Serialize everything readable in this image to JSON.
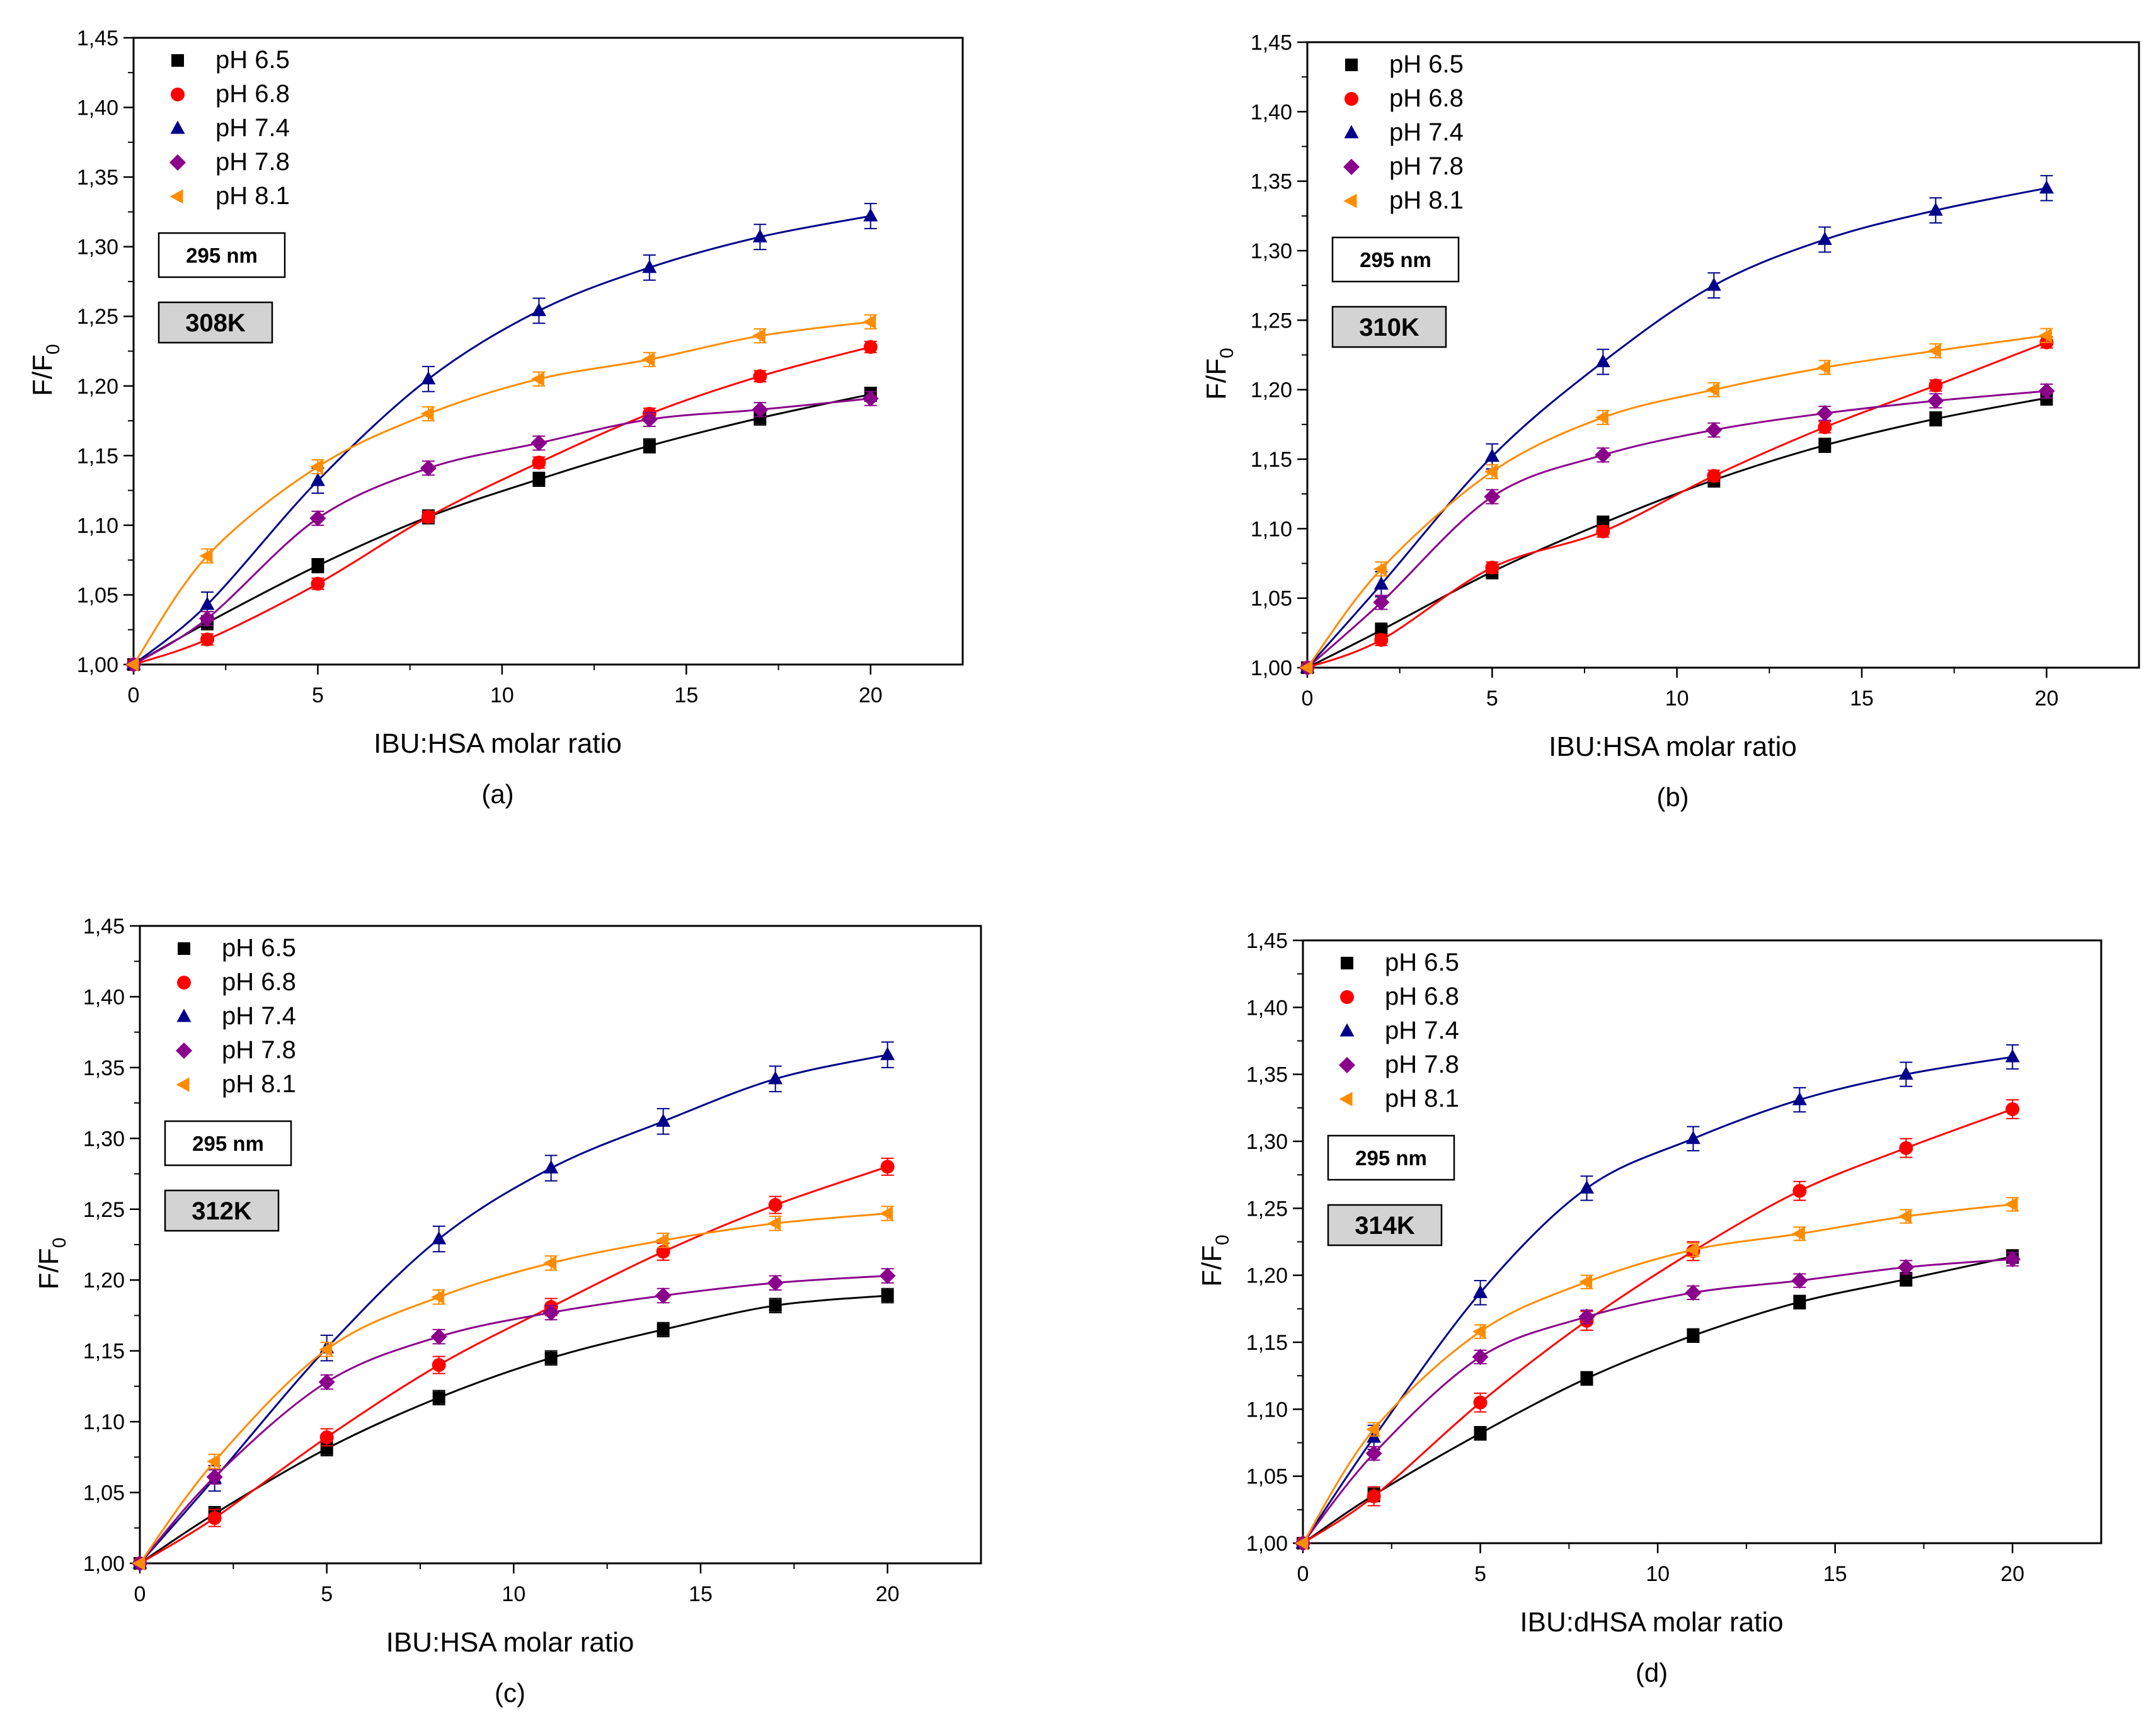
{
  "chart_data": [
    {
      "type": "scatter",
      "panel_label": "(a)",
      "wavelength_label": "295 nm",
      "temperature_label": "308K",
      "xlabel": "IBU:HSA molar ratio",
      "ylabel": "F/F",
      "ylabel_sub": "0",
      "xlim": [
        0,
        22.5
      ],
      "ylim": [
        1.0,
        1.45
      ],
      "x_ticks": [
        "0",
        "5",
        "10",
        "15",
        "20"
      ],
      "y_ticks": [
        "1,00",
        "1,05",
        "1,10",
        "1,15",
        "1,20",
        "1,25",
        "1,30",
        "1,35",
        "1,40",
        "1,45"
      ],
      "legend_position": "top-left",
      "x": [
        0,
        2,
        5,
        8,
        11,
        14,
        17,
        20
      ],
      "series": [
        {
          "name": "pH 6.5",
          "color": "#000000",
          "marker": "square",
          "values": [
            1.0,
            1.03,
            1.071,
            1.106,
            1.133,
            1.157,
            1.177,
            1.194
          ],
          "error": 0.005
        },
        {
          "name": "pH 6.8",
          "color": "#ff0000",
          "marker": "circle",
          "values": [
            1.0,
            1.018,
            1.058,
            1.106,
            1.145,
            1.18,
            1.207,
            1.228
          ],
          "error": 0.004
        },
        {
          "name": "pH 7.4",
          "color": "#00008b",
          "marker": "triangle-up",
          "values": [
            1.0,
            1.043,
            1.132,
            1.205,
            1.254,
            1.285,
            1.307,
            1.322
          ],
          "error": 0.009
        },
        {
          "name": "pH 7.8",
          "color": "#8b008b",
          "marker": "diamond",
          "values": [
            1.0,
            1.033,
            1.105,
            1.141,
            1.159,
            1.176,
            1.183,
            1.191
          ],
          "error": 0.005
        },
        {
          "name": "pH 8.1",
          "color": "#ff8c00",
          "marker": "triangle-left",
          "values": [
            1.0,
            1.078,
            1.142,
            1.18,
            1.205,
            1.219,
            1.236,
            1.246
          ],
          "error": 0.005
        }
      ]
    },
    {
      "type": "scatter",
      "panel_label": "(b)",
      "wavelength_label": "295 nm",
      "temperature_label": "310K",
      "xlabel": "IBU:HSA molar ratio",
      "ylabel": "F/F",
      "ylabel_sub": "0",
      "xlim": [
        0,
        22.5
      ],
      "ylim": [
        1.0,
        1.45
      ],
      "x_ticks": [
        "0",
        "5",
        "10",
        "15",
        "20"
      ],
      "y_ticks": [
        "1,00",
        "1,05",
        "1,10",
        "1,15",
        "1,20",
        "1,25",
        "1,30",
        "1,35",
        "1,40",
        "1,45"
      ],
      "legend_position": "top-left",
      "x": [
        0,
        2,
        5,
        8,
        11,
        14,
        17,
        20
      ],
      "series": [
        {
          "name": "pH 6.5",
          "color": "#000000",
          "marker": "square",
          "values": [
            1.0,
            1.027,
            1.069,
            1.104,
            1.135,
            1.16,
            1.179,
            1.194
          ],
          "error": 0.005
        },
        {
          "name": "pH 6.8",
          "color": "#ff0000",
          "marker": "circle",
          "values": [
            1.0,
            1.02,
            1.072,
            1.098,
            1.138,
            1.173,
            1.203,
            1.234
          ],
          "error": 0.004
        },
        {
          "name": "pH 7.4",
          "color": "#00008b",
          "marker": "triangle-up",
          "values": [
            1.0,
            1.06,
            1.152,
            1.22,
            1.275,
            1.308,
            1.329,
            1.345
          ],
          "error": 0.009
        },
        {
          "name": "pH 7.8",
          "color": "#8b008b",
          "marker": "diamond",
          "values": [
            1.0,
            1.047,
            1.123,
            1.153,
            1.171,
            1.183,
            1.192,
            1.199
          ],
          "error": 0.005
        },
        {
          "name": "pH 8.1",
          "color": "#ff8c00",
          "marker": "triangle-left",
          "values": [
            1.0,
            1.071,
            1.141,
            1.18,
            1.2,
            1.216,
            1.228,
            1.239
          ],
          "error": 0.005
        }
      ]
    },
    {
      "type": "scatter",
      "panel_label": "(c)",
      "wavelength_label": "295 nm",
      "temperature_label": "312K",
      "xlabel": "IBU:HSA molar ratio",
      "ylabel": "F/F",
      "ylabel_sub": "0",
      "xlim": [
        0,
        22.5
      ],
      "ylim": [
        1.0,
        1.45
      ],
      "x_ticks": [
        "0",
        "5",
        "10",
        "15",
        "20"
      ],
      "y_ticks": [
        "1,00",
        "1,05",
        "1,10",
        "1,15",
        "1,20",
        "1,25",
        "1,30",
        "1,35",
        "1,40",
        "1,45"
      ],
      "legend_position": "top-left",
      "x": [
        0,
        2,
        5,
        8,
        11,
        14,
        17,
        20
      ],
      "series": [
        {
          "name": "pH 6.5",
          "color": "#000000",
          "marker": "square",
          "values": [
            1.0,
            1.035,
            1.081,
            1.117,
            1.145,
            1.165,
            1.182,
            1.189
          ],
          "error": 0.005
        },
        {
          "name": "pH 6.8",
          "color": "#ff0000",
          "marker": "circle",
          "values": [
            1.0,
            1.032,
            1.089,
            1.14,
            1.181,
            1.22,
            1.253,
            1.28
          ],
          "error": 0.006
        },
        {
          "name": "pH 7.4",
          "color": "#00008b",
          "marker": "triangle-up",
          "values": [
            1.0,
            1.06,
            1.152,
            1.229,
            1.279,
            1.312,
            1.342,
            1.359
          ],
          "error": 0.009
        },
        {
          "name": "pH 7.8",
          "color": "#8b008b",
          "marker": "diamond",
          "values": [
            1.0,
            1.061,
            1.128,
            1.16,
            1.177,
            1.189,
            1.198,
            1.203
          ],
          "error": 0.005
        },
        {
          "name": "pH 8.1",
          "color": "#ff8c00",
          "marker": "triangle-left",
          "values": [
            1.0,
            1.072,
            1.151,
            1.188,
            1.212,
            1.228,
            1.24,
            1.247
          ],
          "error": 0.005
        }
      ]
    },
    {
      "type": "scatter",
      "panel_label": "(d)",
      "wavelength_label": "295 nm",
      "temperature_label": "314K",
      "xlabel": "IBU:dHSA molar ratio",
      "ylabel": "F/F",
      "ylabel_sub": "0",
      "xlim": [
        0,
        22.5
      ],
      "ylim": [
        1.0,
        1.45
      ],
      "x_ticks": [
        "0",
        "5",
        "10",
        "15",
        "20"
      ],
      "y_ticks": [
        "1,00",
        "1,05",
        "1,10",
        "1,15",
        "1,20",
        "1,25",
        "1,30",
        "1,35",
        "1,40",
        "1,45"
      ],
      "legend_position": "top-left",
      "x": [
        0,
        2,
        5,
        8,
        11,
        14,
        17,
        20
      ],
      "series": [
        {
          "name": "pH 6.5",
          "color": "#000000",
          "marker": "square",
          "values": [
            1.0,
            1.036,
            1.082,
            1.123,
            1.155,
            1.18,
            1.197,
            1.214
          ],
          "error": 0.005
        },
        {
          "name": "pH 6.8",
          "color": "#ff0000",
          "marker": "circle",
          "values": [
            1.0,
            1.035,
            1.105,
            1.166,
            1.218,
            1.263,
            1.295,
            1.324
          ],
          "error": 0.007
        },
        {
          "name": "pH 7.4",
          "color": "#00008b",
          "marker": "triangle-up",
          "values": [
            1.0,
            1.079,
            1.187,
            1.265,
            1.302,
            1.331,
            1.35,
            1.363
          ],
          "error": 0.009
        },
        {
          "name": "pH 7.8",
          "color": "#8b008b",
          "marker": "diamond",
          "values": [
            1.0,
            1.067,
            1.139,
            1.169,
            1.187,
            1.196,
            1.206,
            1.212
          ],
          "error": 0.005
        },
        {
          "name": "pH 8.1",
          "color": "#ff8c00",
          "marker": "triangle-left",
          "values": [
            1.0,
            1.085,
            1.158,
            1.195,
            1.219,
            1.231,
            1.244,
            1.253
          ],
          "error": 0.005
        }
      ]
    }
  ]
}
